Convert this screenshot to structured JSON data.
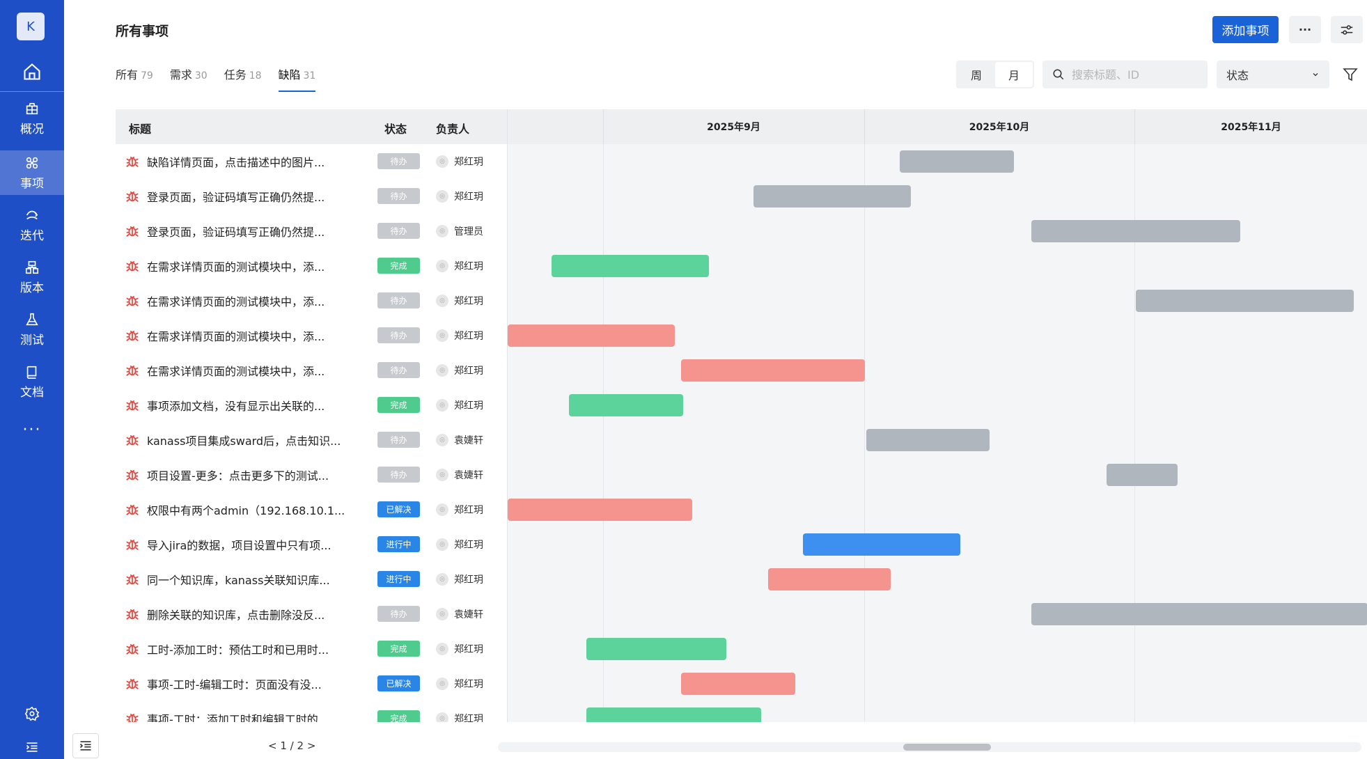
{
  "sidebar": {
    "avatar_letter": "K",
    "items": [
      {
        "label": "概况",
        "icon": "package-icon"
      },
      {
        "label": "事项",
        "icon": "items-icon"
      },
      {
        "label": "迭代",
        "icon": "sprint-icon"
      },
      {
        "label": "版本",
        "icon": "version-icon"
      },
      {
        "label": "测试",
        "icon": "flask-icon"
      },
      {
        "label": "文档",
        "icon": "book-icon"
      }
    ],
    "more": "···"
  },
  "header": {
    "title": "所有事项",
    "add_label": "添加事项",
    "more_label": "···"
  },
  "tabs": [
    {
      "label": "所有",
      "count": "79"
    },
    {
      "label": "需求",
      "count": "30"
    },
    {
      "label": "任务",
      "count": "18"
    },
    {
      "label": "缺陷",
      "count": "31"
    }
  ],
  "toolbar": {
    "week_label": "周",
    "month_label": "月",
    "search_placeholder": "搜索标题、ID",
    "status_label": "状态"
  },
  "columns": {
    "title": "标题",
    "status": "状态",
    "owner": "负责人"
  },
  "gantt": {
    "months": [
      "2025年9月",
      "2025年10月",
      "2025年11月"
    ]
  },
  "status_colors": {
    "待办": "#c6c9ce",
    "完成": "#4fcc8d",
    "已解决": "#2a86e6",
    "进行中": "#2a86e6"
  },
  "bar_colors": {
    "gray": "#b0b6be",
    "green": "#5dd39c",
    "red": "#f5938f",
    "blue": "#3d8ff0"
  },
  "rows": [
    {
      "title": "缺陷详情页面，点击描述中的图片...",
      "status": "待办",
      "owner": "郑红玥",
      "bar": "gray"
    },
    {
      "title": "登录页面，验证码填写正确仍然提...",
      "status": "待办",
      "owner": "郑红玥",
      "bar": "gray"
    },
    {
      "title": "登录页面，验证码填写正确仍然提...",
      "status": "待办",
      "owner": "管理员",
      "bar": "gray"
    },
    {
      "title": "在需求详情页面的测试模块中，添...",
      "status": "完成",
      "owner": "郑红玥",
      "bar": "green"
    },
    {
      "title": "在需求详情页面的测试模块中，添...",
      "status": "待办",
      "owner": "郑红玥",
      "bar": "gray"
    },
    {
      "title": "在需求详情页面的测试模块中，添...",
      "status": "待办",
      "owner": "郑红玥",
      "bar": "red"
    },
    {
      "title": "在需求详情页面的测试模块中，添...",
      "status": "待办",
      "owner": "郑红玥",
      "bar": "red"
    },
    {
      "title": "事项添加文档，没有显示出关联的...",
      "status": "完成",
      "owner": "郑红玥",
      "bar": "green"
    },
    {
      "title": "kanass项目集成sward后，点击知识...",
      "status": "待办",
      "owner": "袁婕轩",
      "bar": "gray"
    },
    {
      "title": "项目设置-更多：点击更多下的测试...",
      "status": "待办",
      "owner": "袁婕轩",
      "bar": "gray"
    },
    {
      "title": "权限中有两个admin（192.168.10.1...",
      "status": "已解决",
      "owner": "郑红玥",
      "bar": "red"
    },
    {
      "title": "导入jira的数据，项目设置中只有项...",
      "status": "进行中",
      "owner": "郑红玥",
      "bar": "blue"
    },
    {
      "title": "同一个知识库，kanass关联知识库...",
      "status": "进行中",
      "owner": "郑红玥",
      "bar": "red"
    },
    {
      "title": "删除关联的知识库，点击删除没反...",
      "status": "待办",
      "owner": "袁婕轩",
      "bar": "gray"
    },
    {
      "title": "工时-添加工时：预估工时和已用时...",
      "status": "完成",
      "owner": "郑红玥",
      "bar": "green"
    },
    {
      "title": "事项-工时-编辑工时：页面没有没...",
      "status": "已解决",
      "owner": "郑红玥",
      "bar": "red"
    },
    {
      "title": "事项-工时：添加工时和编辑工时的",
      "status": "完成",
      "owner": "郑红玥",
      "bar": "green"
    }
  ],
  "pager": {
    "text": "1 / 2"
  }
}
